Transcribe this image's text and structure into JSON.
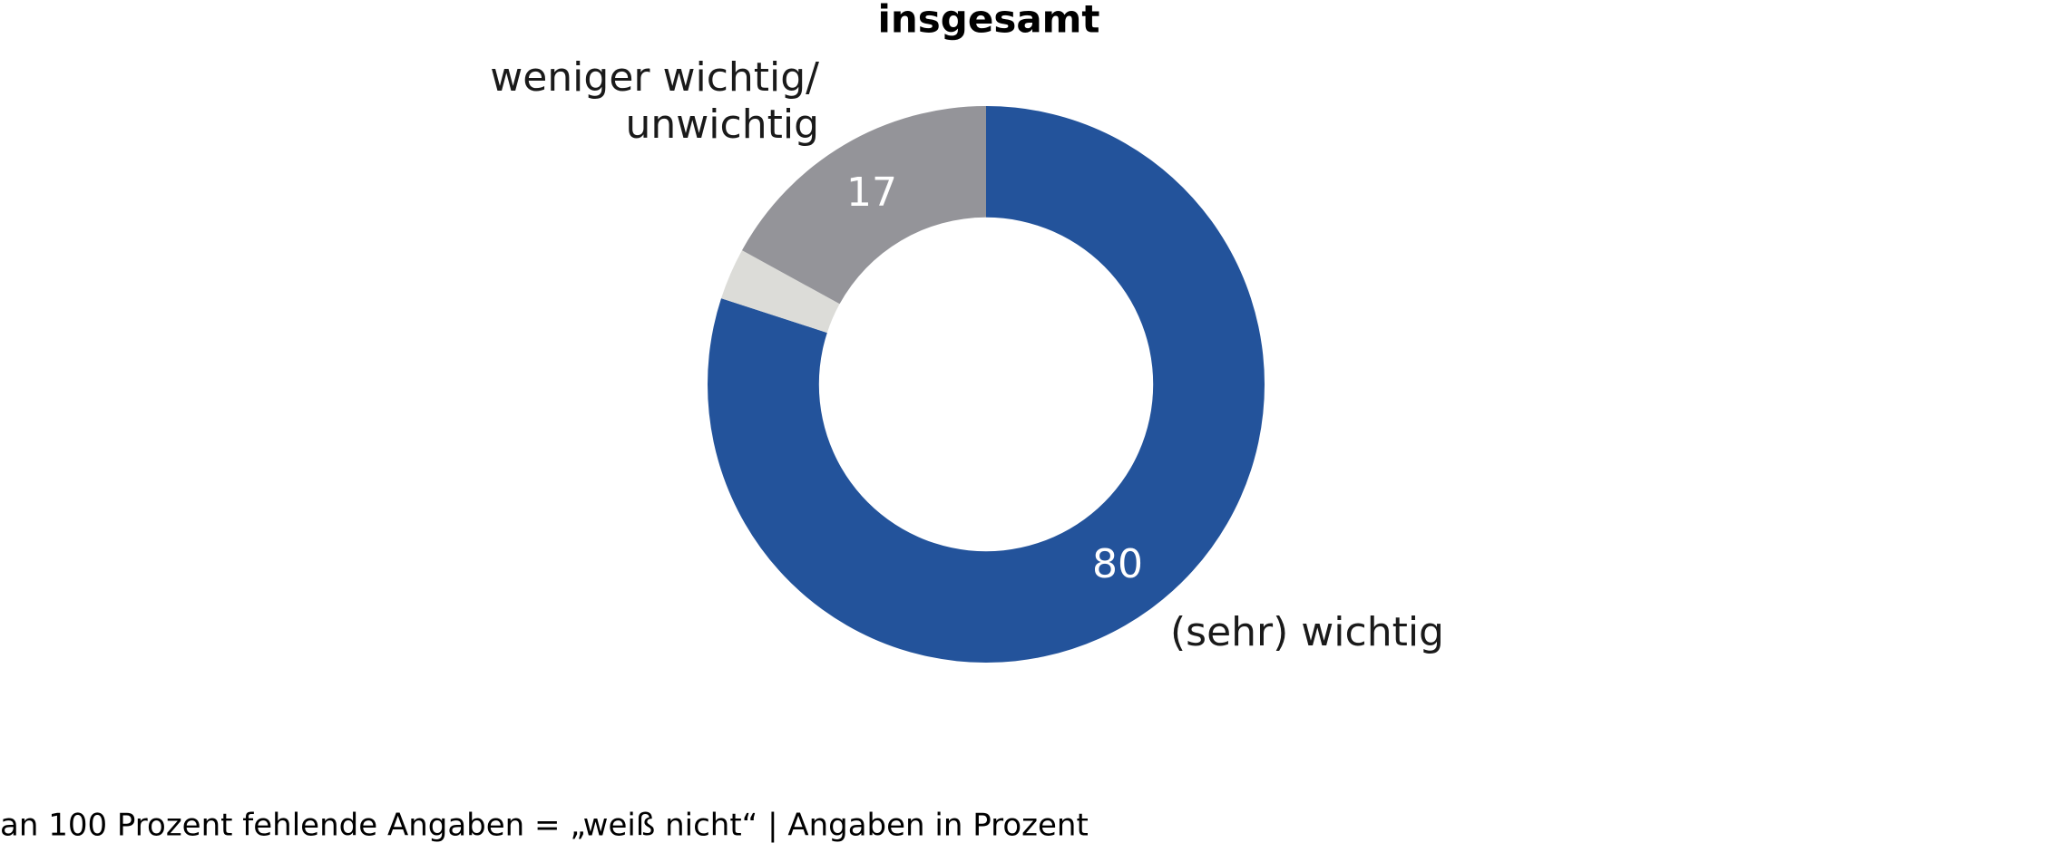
{
  "chart_data": {
    "type": "pie",
    "title": "insgesamt",
    "categories": [
      "(sehr) wichtig",
      null,
      "weniger wichtig/\nunwichtig"
    ],
    "values": [
      80,
      3,
      17
    ],
    "colors": [
      "#23539b",
      "#dcdcd8",
      "#949499"
    ],
    "hole": 0.6,
    "note": "an 100 Prozent fehlende Angaben = „weiß nicht“ | Angaben in Prozent"
  }
}
